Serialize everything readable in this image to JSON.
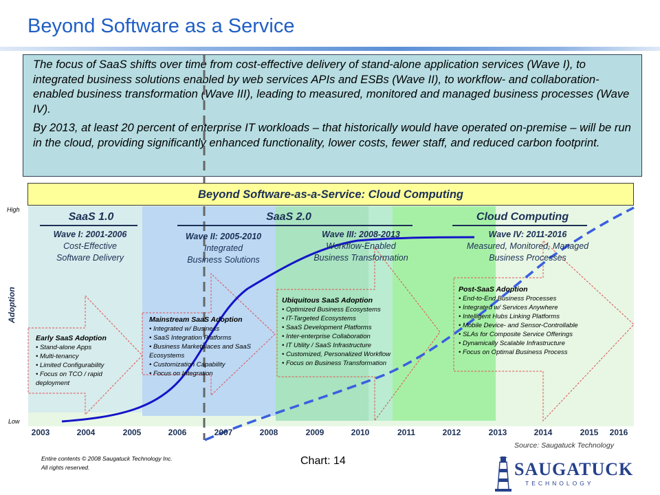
{
  "title": "Beyond Software as a Service",
  "intro": {
    "paragraph1": "The focus of SaaS shifts over time from cost-effective delivery of stand-alone application services (Wave I), to integrated business solutions enabled by web services APIs and ESBs (Wave II), to workflow- and collaboration-enabled business transformation (Wave III), leading to measured, monitored and managed business processes (Wave IV).",
    "paragraph2": "By 2013, at least 20 percent of enterprise IT workloads – that historically would have operated on-premise – will be run in the cloud, providing significantly enhanced functionality, lower costs, fewer staff, and reduced carbon footprint."
  },
  "banner": "Beyond Software-as-a-Service: Cloud Computing",
  "axis": {
    "high": "High",
    "low": "Low",
    "adoption": "Adoption"
  },
  "eras": [
    "SaaS 1.0",
    "SaaS 2.0",
    "Cloud Computing"
  ],
  "waves": [
    {
      "title": "Wave I: 2001-2006",
      "line1": "Cost-Effective",
      "line2": "Software Delivery"
    },
    {
      "title": "Wave II: 2005-2010",
      "line1": "Integrated",
      "line2": "Business Solutions"
    },
    {
      "title": "Wave III: 2008-2013",
      "line1": "Workflow-Enabled",
      "line2": "Business Transformation"
    },
    {
      "title": "Wave IV: 2011-2016",
      "line1": "Measured, Monitored, Managed",
      "line2": "Business Processes"
    }
  ],
  "boxes": [
    {
      "title": "Early SaaS Adoption",
      "items": [
        "Stand-alone Apps",
        "Multi-tenancy",
        "Limited Configurability",
        "Focus on TCO / rapid deployment"
      ]
    },
    {
      "title": "Mainstream SaaS Adoption",
      "items": [
        "Integrated w/ Business",
        "SaaS Integration Platforms",
        "Business Marketplaces and SaaS Ecosystems",
        "Customization Capability",
        "Focus on Integration"
      ]
    },
    {
      "title": "Ubiquitous SaaS Adoption",
      "items": [
        "Optimized Business Ecosystems",
        "IT-Targeted Ecosystems",
        "SaaS Development Platforms",
        "Inter-enterprise Collaboration",
        "IT Utility / SaaS Infrastructure",
        "Customized, Personalized Workflow",
        "Focus on Business Transformation"
      ]
    },
    {
      "title": "Post-SaaS Adoption",
      "items": [
        "End-to-End Business Processes",
        "Integrated w/ Services Anywhere",
        "Intelligent Hubs Linking Platforms",
        "Mobile Device- and Sensor-Controllable",
        "SLAs for Composite Service Offerings",
        "Dynamically Scalable Infrastructure",
        "Focus on Optimal Business Process"
      ]
    }
  ],
  "years": [
    "2003",
    "2004",
    "2005",
    "2006",
    "2007",
    "2008",
    "2009",
    "2010",
    "2011",
    "2012",
    "2013",
    "2014",
    "2015",
    "2016"
  ],
  "source": "Source: Saugatuck Technology",
  "copyright": {
    "line1": "Entire contents © 2008 Saugatuck Technology Inc.",
    "line2": "All rights reserved."
  },
  "page_label": "Chart:  14",
  "logo": {
    "name": "SAUGATUCK",
    "sub": "TECHNOLOGY"
  },
  "colors": {
    "title": "#1f5fc4",
    "intro_bg": "#b7dde2",
    "banner_bg": "#ffff9a",
    "wave1_bg": "#d7ecec",
    "wave2_bg": "#bcd8f3",
    "wave3_bg": "#a9e3c0",
    "wave4_bg": "#a6f0a6",
    "curve": "#1414c8",
    "dashed_curve": "#3a5fe0"
  }
}
